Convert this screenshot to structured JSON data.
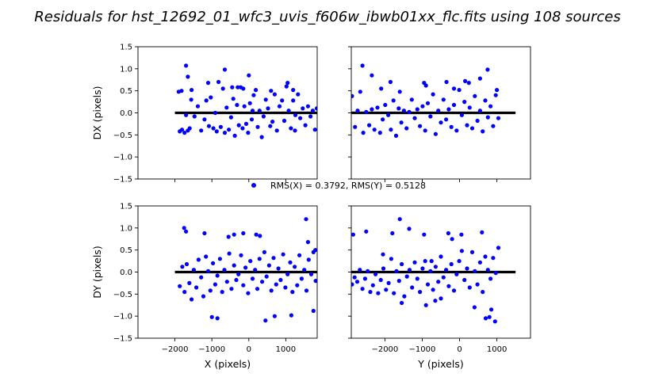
{
  "title": "Residuals for hst_12692_01_wfc3_uvis_f606w_ibwb01xx_flc.fits using 108 sources",
  "legend": {
    "label": "RMS(X) = 0.3792, RMS(Y) = 0.5128"
  },
  "colors": {
    "points": "#0000ff",
    "zero_line": "#000000",
    "frame": "#000000"
  },
  "chart_data": [
    {
      "type": "scatter",
      "panel": "top-left",
      "xlabel": "",
      "ylabel": "DX (pixels)",
      "xlim": [
        -3000,
        1850
      ],
      "ylim": [
        -1.5,
        1.5
      ],
      "xticks": [
        -2000,
        -1000,
        0,
        1000
      ],
      "yticks": [
        -1.5,
        -1.0,
        -0.5,
        0.0,
        0.5,
        1.0,
        1.5
      ],
      "show_xtick_labels": false,
      "show_ytick_labels": true,
      "zero_line": {
        "y": 0.0,
        "xrange": [
          -2000,
          1850
        ]
      },
      "x": [
        -1870,
        -1810,
        -1740,
        -1700,
        -1650,
        -1600,
        -1560,
        -1470,
        -1380,
        -1290,
        -1200,
        -1150,
        -1080,
        -1030,
        -960,
        -910,
        -870,
        -820,
        -760,
        -700,
        -650,
        -600,
        -540,
        -480,
        -420,
        -380,
        -320,
        -270,
        -220,
        -170,
        -120,
        -70,
        -20,
        30,
        80,
        130,
        190,
        240,
        290,
        350,
        400,
        460,
        520,
        580,
        640,
        700,
        760,
        830,
        900,
        960,
        1020,
        1080,
        1140,
        1200,
        1260,
        1330,
        1390,
        1460,
        1530,
        1600,
        1670,
        1730,
        1790,
        1840
      ],
      "y": [
        -0.42,
        -0.38,
        -0.45,
        -0.05,
        -0.4,
        -0.35,
        0.3,
        -0.08,
        0.15,
        -0.4,
        -0.15,
        0.28,
        -0.3,
        0.35,
        -0.35,
        0.0,
        -0.42,
        0.7,
        -0.32,
        0.55,
        -0.45,
        0.12,
        -0.38,
        -0.1,
        0.32,
        -0.52,
        0.18,
        -0.28,
        0.58,
        -0.35,
        0.15,
        -0.25,
        -0.45,
        0.22,
        -0.15,
        0.4,
        0.52,
        -0.32,
        0.05,
        -0.55,
        -0.08,
        0.3,
        0.1,
        -0.3,
        -0.2,
        0.42,
        -0.4,
        0.15,
        0.28,
        -0.18,
        0.6,
        0.05,
        -0.35,
        0.28,
        -0.05,
        0.42,
        -0.12,
        0.1,
        -0.28,
        0.15,
        -0.08,
        0.05,
        -0.38,
        0.1
      ],
      "x_extra": [
        -1900,
        -1820,
        -1700,
        -1650,
        -1550,
        -1100,
        -650,
        -450,
        -300,
        -150,
        0,
        100,
        600,
        1050,
        1200,
        1250
      ],
      "y_extra": [
        0.48,
        0.5,
        1.07,
        0.82,
        0.52,
        0.68,
        0.98,
        0.58,
        0.58,
        0.55,
        0.85,
        0.05,
        0.5,
        0.68,
        0.52,
        -0.4
      ]
    },
    {
      "type": "scatter",
      "panel": "top-right",
      "xlabel": "",
      "ylabel": "",
      "xlim": [
        -2900,
        1900
      ],
      "ylim": [
        -1.5,
        1.5
      ],
      "xticks": [
        -2000,
        -1000,
        0,
        1000
      ],
      "yticks": [
        -1.5,
        -1.0,
        -0.5,
        0.0,
        0.5,
        1.0,
        1.5
      ],
      "show_xtick_labels": false,
      "show_ytick_labels": false,
      "zero_line": {
        "y": 0.0,
        "xrange": [
          -2900,
          1500
        ]
      },
      "x": [
        -2880,
        -2800,
        -2730,
        -2660,
        -2580,
        -2500,
        -2420,
        -2350,
        -2280,
        -2200,
        -2130,
        -2060,
        -1990,
        -1910,
        -1840,
        -1770,
        -1700,
        -1630,
        -1560,
        -1490,
        -1420,
        -1350,
        -1280,
        -1200,
        -1130,
        -1060,
        -990,
        -920,
        -850,
        -780,
        -710,
        -640,
        -570,
        -500,
        -430,
        -360,
        -290,
        -220,
        -150,
        -80,
        -10,
        60,
        130,
        200,
        270,
        340,
        410,
        480,
        550,
        620,
        690,
        760,
        830,
        900,
        970,
        1040
      ],
      "y": [
        0.38,
        -0.32,
        0.05,
        0.48,
        -0.45,
        0.02,
        -0.28,
        0.08,
        -0.38,
        0.12,
        -0.45,
        -0.15,
        0.18,
        -0.05,
        -0.38,
        0.28,
        -0.52,
        0.1,
        -0.22,
        0.05,
        -0.35,
        0.02,
        0.3,
        -0.12,
        0.08,
        -0.3,
        0.15,
        -0.4,
        0.22,
        -0.08,
        0.42,
        -0.48,
        0.05,
        -0.22,
        0.3,
        -0.15,
        0.08,
        -0.32,
        0.18,
        -0.4,
        0.52,
        -0.05,
        0.25,
        -0.28,
        0.12,
        -0.35,
        0.38,
        -0.18,
        0.05,
        -0.42,
        0.28,
        -0.1,
        0.15,
        -0.3,
        0.4,
        -0.12
      ],
      "x_extra": [
        -2600,
        -2350,
        -2100,
        -1850,
        -1600,
        -950,
        -900,
        -350,
        -150,
        150,
        250,
        550,
        750,
        1000
      ],
      "y_extra": [
        1.07,
        0.85,
        0.55,
        0.7,
        0.48,
        0.68,
        0.62,
        0.7,
        0.55,
        0.72,
        0.68,
        0.78,
        0.98,
        0.52
      ]
    },
    {
      "type": "scatter",
      "panel": "bottom-left",
      "xlabel": "X (pixels)",
      "ylabel": "DY (pixels)",
      "xlim": [
        -3000,
        1850
      ],
      "ylim": [
        -1.5,
        1.5
      ],
      "xticks": [
        -2000,
        -1000,
        0,
        1000
      ],
      "yticks": [
        -1.5,
        -1.0,
        -0.5,
        0.0,
        0.5,
        1.0,
        1.5
      ],
      "show_xtick_labels": true,
      "show_ytick_labels": true,
      "zero_line": {
        "y": 0.0,
        "xrange": [
          -2000,
          1850
        ]
      },
      "x": [
        -1870,
        -1800,
        -1740,
        -1680,
        -1610,
        -1550,
        -1490,
        -1420,
        -1360,
        -1290,
        -1230,
        -1160,
        -1100,
        -1040,
        -970,
        -910,
        -850,
        -780,
        -720,
        -660,
        -590,
        -530,
        -470,
        -400,
        -340,
        -280,
        -210,
        -150,
        -90,
        -20,
        40,
        100,
        170,
        230,
        290,
        360,
        420,
        480,
        550,
        610,
        670,
        740,
        800,
        860,
        930,
        990,
        1050,
        1120,
        1180,
        1240,
        1310,
        1370,
        1430,
        1500,
        1560,
        1620,
        1690,
        1750,
        1810
      ],
      "y": [
        -0.32,
        0.12,
        -0.45,
        0.18,
        -0.25,
        -0.62,
        0.05,
        -0.35,
        0.28,
        -0.12,
        -0.55,
        0.35,
        0.02,
        -0.42,
        0.2,
        -0.28,
        -0.08,
        0.3,
        -0.45,
        0.05,
        -0.22,
        0.42,
        -0.38,
        0.15,
        -0.18,
        -0.05,
        0.38,
        -0.3,
        0.1,
        -0.48,
        0.25,
        -0.15,
        0.05,
        -0.38,
        0.3,
        -0.22,
        0.45,
        -0.1,
        0.15,
        -0.42,
        0.32,
        -0.28,
        0.08,
        -0.18,
        0.4,
        -0.35,
        -0.05,
        0.22,
        -0.45,
        0.12,
        -0.3,
        0.38,
        -0.15,
        0.05,
        -0.42,
        0.28,
        -0.05,
        0.45,
        -0.2
      ],
      "x_extra": [
        -1750,
        -1700,
        -1200,
        -1000,
        -850,
        -550,
        -400,
        -150,
        200,
        300,
        450,
        700,
        1150,
        1550,
        1600,
        1750,
        1800
      ],
      "y_extra": [
        1.0,
        0.92,
        0.88,
        -1.02,
        -1.05,
        0.8,
        0.85,
        0.88,
        0.85,
        0.82,
        -1.1,
        -1.0,
        -0.98,
        1.2,
        0.68,
        -0.88,
        0.5
      ]
    },
    {
      "type": "scatter",
      "panel": "bottom-right",
      "xlabel": "Y (pixels)",
      "ylabel": "",
      "xlim": [
        -2900,
        1900
      ],
      "ylim": [
        -1.5,
        1.5
      ],
      "xticks": [
        -2000,
        -1000,
        0,
        1000
      ],
      "yticks": [
        -1.5,
        -1.0,
        -0.5,
        0.0,
        0.5,
        1.0,
        1.5
      ],
      "show_xtick_labels": true,
      "show_ytick_labels": false,
      "zero_line": {
        "y": 0.0,
        "xrange": [
          -2900,
          1500
        ]
      },
      "x": [
        -2880,
        -2810,
        -2740,
        -2670,
        -2600,
        -2530,
        -2460,
        -2390,
        -2320,
        -2250,
        -2180,
        -2110,
        -2040,
        -1970,
        -1900,
        -1830,
        -1760,
        -1690,
        -1620,
        -1550,
        -1480,
        -1410,
        -1340,
        -1270,
        -1200,
        -1130,
        -1060,
        -990,
        -920,
        -850,
        -780,
        -710,
        -640,
        -570,
        -500,
        -430,
        -360,
        -290,
        -220,
        -150,
        -80,
        -10,
        60,
        130,
        200,
        270,
        340,
        410,
        480,
        550,
        620,
        690,
        760,
        830,
        900,
        970,
        1040
      ],
      "y": [
        -0.28,
        -0.12,
        -0.22,
        0.05,
        -0.38,
        -0.15,
        0.02,
        -0.45,
        -0.3,
        -0.05,
        -0.48,
        -0.18,
        0.08,
        -0.4,
        -0.25,
        0.3,
        -0.48,
        0.02,
        -0.2,
        0.18,
        -0.55,
        -0.1,
        0.05,
        -0.35,
        0.22,
        -0.15,
        -0.45,
        0.08,
        0.25,
        -0.28,
        0.02,
        -0.4,
        0.12,
        -0.22,
        0.35,
        -0.12,
        0.05,
        -0.32,
        0.18,
        -0.42,
        -0.05,
        0.25,
        0.48,
        -0.18,
        0.08,
        -0.35,
        0.45,
        0.02,
        -0.28,
        0.22,
        -0.45,
        0.35,
        0.05,
        -0.15,
        0.32,
        -0.02,
        0.55
      ],
      "x_extra": [
        -2850,
        -2500,
        -2050,
        -1800,
        -1600,
        -1550,
        -1350,
        -950,
        -900,
        -750,
        -650,
        -500,
        -300,
        -200,
        50,
        400,
        600,
        700,
        800,
        850,
        950
      ],
      "y_extra": [
        0.85,
        0.92,
        0.4,
        0.88,
        1.2,
        -0.7,
        0.98,
        0.85,
        -0.75,
        0.25,
        -0.65,
        -0.6,
        0.88,
        0.75,
        0.85,
        -0.8,
        0.9,
        -1.05,
        -1.02,
        -0.85,
        -1.12
      ]
    }
  ]
}
